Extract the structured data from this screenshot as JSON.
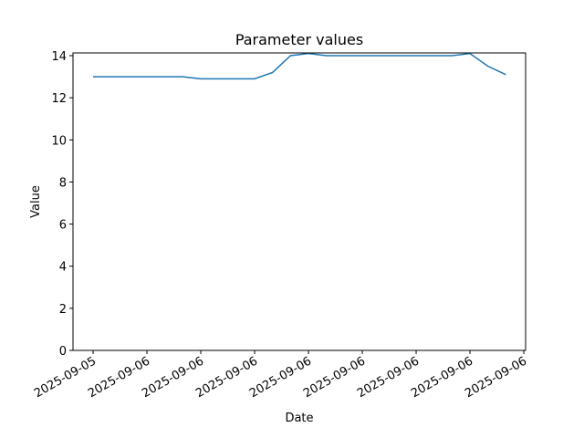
{
  "chart_data": {
    "type": "line",
    "title": "Parameter values",
    "xlabel": "Date",
    "ylabel": "Value",
    "x": [
      0,
      1,
      2,
      3,
      4,
      5,
      6,
      7,
      8,
      9,
      10,
      11,
      12,
      13,
      14,
      15,
      16,
      17,
      18,
      19,
      20,
      21,
      22,
      23
    ],
    "series": [
      {
        "name": "Value",
        "color": "#1f77b4",
        "values": [
          13.0,
          13.0,
          13.0,
          13.0,
          13.0,
          13.0,
          12.9,
          12.9,
          12.9,
          12.9,
          13.2,
          14.0,
          14.1,
          14.0,
          14.0,
          14.0,
          14.0,
          14.0,
          14.0,
          14.0,
          14.0,
          14.1,
          13.5,
          13.1
        ]
      }
    ],
    "xlim": [
      -1.12,
      24.1
    ],
    "xticks": [
      {
        "value": 0,
        "label": "2025-09-05"
      },
      {
        "value": 3,
        "label": "2025-09-06"
      },
      {
        "value": 6,
        "label": "2025-09-06"
      },
      {
        "value": 9,
        "label": "2025-09-06"
      },
      {
        "value": 12,
        "label": "2025-09-06"
      },
      {
        "value": 15,
        "label": "2025-09-06"
      },
      {
        "value": 18,
        "label": "2025-09-06"
      },
      {
        "value": 21,
        "label": "2025-09-06"
      },
      {
        "value": 24,
        "label": "2025-09-06"
      }
    ],
    "ylim": [
      0,
      14.13
    ],
    "yticks": [
      0,
      2,
      4,
      6,
      8,
      10,
      12,
      14
    ],
    "grid": false
  }
}
